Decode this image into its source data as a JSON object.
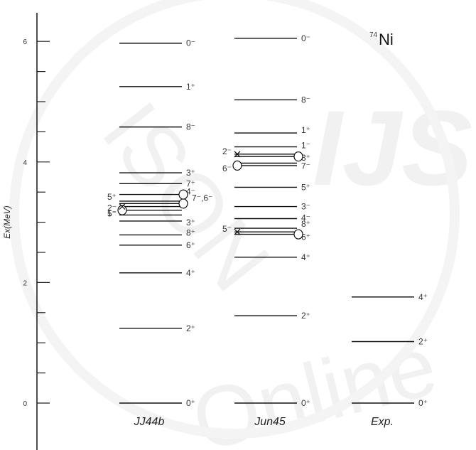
{
  "chart_data": {
    "type": "level-scheme",
    "title_superscript": "74",
    "title_element": "Ni",
    "ylabel": "Ex(MeV)",
    "ylim": [
      -0.8,
      6.6
    ],
    "yticks": [
      "0",
      "2",
      "4",
      "6"
    ],
    "columns": [
      {
        "name": "JJ44b",
        "levels": [
          {
            "e": 0.0,
            "label": "0⁺"
          },
          {
            "e": 1.24,
            "label": "2⁺"
          },
          {
            "e": 2.16,
            "label": "4⁺"
          },
          {
            "e": 2.62,
            "label": "6⁺"
          },
          {
            "e": 2.79,
            "label": "8⁺"
          },
          {
            "e": 3.02,
            "label": "3⁺"
          },
          {
            "e": 3.12,
            "label": "5⁻"
          },
          {
            "e": 3.2,
            "label": "1⁻"
          },
          {
            "e": 3.26,
            "label": "2⁻"
          },
          {
            "e": 3.31,
            "label": "7⁻,6⁻"
          },
          {
            "e": 3.35,
            "label": "5⁺"
          },
          {
            "e": 3.46,
            "label": "4⁻"
          },
          {
            "e": 3.64,
            "label": "7⁺"
          },
          {
            "e": 3.82,
            "label": "3⁺"
          },
          {
            "e": 4.58,
            "label": "8⁻"
          },
          {
            "e": 5.25,
            "label": "1⁺"
          },
          {
            "e": 5.97,
            "label": "0⁻"
          }
        ]
      },
      {
        "name": "Jun45",
        "levels": [
          {
            "e": 0.0,
            "label": "0⁺"
          },
          {
            "e": 1.45,
            "label": "2⁺"
          },
          {
            "e": 2.42,
            "label": "4⁺"
          },
          {
            "e": 2.8,
            "label": "6⁺"
          },
          {
            "e": 2.84,
            "label": "5⁻"
          },
          {
            "e": 2.9,
            "label": "8⁺"
          },
          {
            "e": 3.06,
            "label": "4⁻"
          },
          {
            "e": 3.26,
            "label": "3⁻"
          },
          {
            "e": 3.58,
            "label": "5⁺"
          },
          {
            "e": 3.94,
            "label": "6⁻"
          },
          {
            "e": 3.98,
            "label": "7⁻"
          },
          {
            "e": 4.09,
            "label": "3⁺"
          },
          {
            "e": 4.13,
            "label": "2⁻"
          },
          {
            "e": 4.25,
            "label": "1⁻"
          },
          {
            "e": 4.48,
            "label": "1⁺"
          },
          {
            "e": 5.03,
            "label": "8⁻"
          },
          {
            "e": 6.05,
            "label": "0⁻"
          }
        ]
      },
      {
        "name": "Exp.",
        "levels": [
          {
            "e": 0.0,
            "label": "0⁺"
          },
          {
            "e": 1.02,
            "label": "2⁺"
          },
          {
            "e": 1.76,
            "label": "4⁺"
          }
        ]
      }
    ]
  },
  "label_placements": [
    {
      "col": 0,
      "idx": 0,
      "dy": 0
    },
    {
      "col": 0,
      "idx": 1,
      "dy": 0
    },
    {
      "col": 0,
      "idx": 2,
      "dy": 0
    },
    {
      "col": 0,
      "idx": 3,
      "dy": 0
    },
    {
      "col": 0,
      "idx": 4,
      "dy": -3
    },
    {
      "col": 0,
      "idx": 5,
      "dy": 2
    },
    {
      "col": 0,
      "idx": 6,
      "dy": -2,
      "side": "left"
    },
    {
      "col": 0,
      "idx": 7,
      "dy": 4,
      "side": "left"
    },
    {
      "col": 0,
      "idx": 8,
      "dy": 2,
      "side": "left"
    },
    {
      "col": 0,
      "idx": 9,
      "dy": -8,
      "shift": 8
    },
    {
      "col": 0,
      "idx": 10,
      "dy": -6,
      "side": "left"
    },
    {
      "col": 0,
      "idx": 11,
      "dy": -4
    },
    {
      "col": 0,
      "idx": 12,
      "dy": 0
    },
    {
      "col": 0,
      "idx": 13,
      "dy": 0
    },
    {
      "col": 0,
      "idx": 14,
      "dy": 0
    },
    {
      "col": 0,
      "idx": 15,
      "dy": 0
    },
    {
      "col": 0,
      "idx": 16,
      "dy": 0
    },
    {
      "col": 1,
      "idx": 0,
      "dy": 0
    },
    {
      "col": 1,
      "idx": 1,
      "dy": 0
    },
    {
      "col": 1,
      "idx": 2,
      "dy": 0
    },
    {
      "col": 1,
      "idx": 3,
      "dy": 4
    },
    {
      "col": 1,
      "idx": 4,
      "dy": -4,
      "side": "left"
    },
    {
      "col": 1,
      "idx": 5,
      "dy": -6
    },
    {
      "col": 1,
      "idx": 6,
      "dy": -1
    },
    {
      "col": 1,
      "idx": 7,
      "dy": 0
    },
    {
      "col": 1,
      "idx": 8,
      "dy": 0
    },
    {
      "col": 1,
      "idx": 9,
      "dy": 4,
      "side": "left"
    },
    {
      "col": 1,
      "idx": 10,
      "dy": 4
    },
    {
      "col": 1,
      "idx": 11,
      "dy": 2
    },
    {
      "col": 1,
      "idx": 12,
      "dy": -4,
      "side": "left"
    },
    {
      "col": 1,
      "idx": 13,
      "dy": -2
    },
    {
      "col": 1,
      "idx": 14,
      "dy": -4
    },
    {
      "col": 1,
      "idx": 15,
      "dy": 0
    },
    {
      "col": 1,
      "idx": 16,
      "dy": 0
    },
    {
      "col": 2,
      "idx": 0,
      "dy": 0
    },
    {
      "col": 2,
      "idx": 1,
      "dy": 0
    },
    {
      "col": 2,
      "idx": 2,
      "dy": 0
    }
  ],
  "markers": [
    {
      "col": 0,
      "level_idx": 7,
      "type": "circle",
      "side": "left"
    },
    {
      "col": 0,
      "level_idx": 8,
      "type": "x",
      "side": "left"
    },
    {
      "col": 0,
      "level_idx": 9,
      "type": "circle",
      "side": "right"
    },
    {
      "col": 0,
      "level_idx": 11,
      "type": "circle",
      "side": "right"
    },
    {
      "col": 1,
      "level_idx": 3,
      "type": "circle",
      "side": "right"
    },
    {
      "col": 1,
      "level_idx": 4,
      "type": "x",
      "side": "left"
    },
    {
      "col": 1,
      "level_idx": 9,
      "type": "circle",
      "side": "left"
    },
    {
      "col": 1,
      "level_idx": 11,
      "type": "circle",
      "side": "right"
    },
    {
      "col": 1,
      "level_idx": 12,
      "type": "x",
      "side": "left"
    }
  ]
}
